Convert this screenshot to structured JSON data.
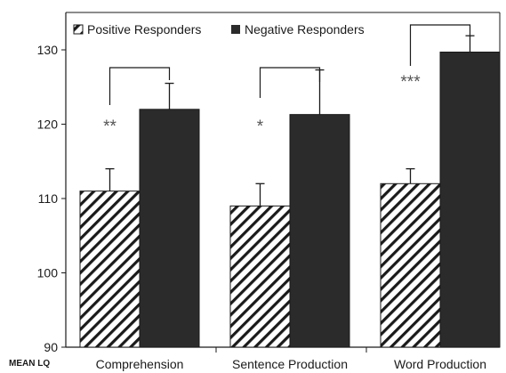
{
  "chart_data": {
    "type": "bar",
    "ylabel": "MEAN LQ",
    "ylim": [
      90,
      135
    ],
    "yticks": [
      "90",
      "100",
      "110",
      "120",
      "130"
    ],
    "categories": [
      "Comprehension",
      "Sentence Production",
      "Word Production"
    ],
    "series": [
      {
        "name": "Positive Responders",
        "values": [
          111,
          109,
          112
        ],
        "error": [
          3,
          3,
          2
        ],
        "fill": "hatched"
      },
      {
        "name": "Negative Responders",
        "values": [
          122,
          121.3,
          129.7
        ],
        "error": [
          3.5,
          6,
          2.2
        ],
        "fill": "solid"
      }
    ],
    "significance": [
      "**",
      "*",
      "***"
    ],
    "legend_position": "top-left",
    "grid": false,
    "colors": {
      "bar_dark": "#2b2b2b",
      "outline": "#1a1a1a",
      "hatch": "#1a1a1a",
      "significance": "#555555"
    }
  }
}
